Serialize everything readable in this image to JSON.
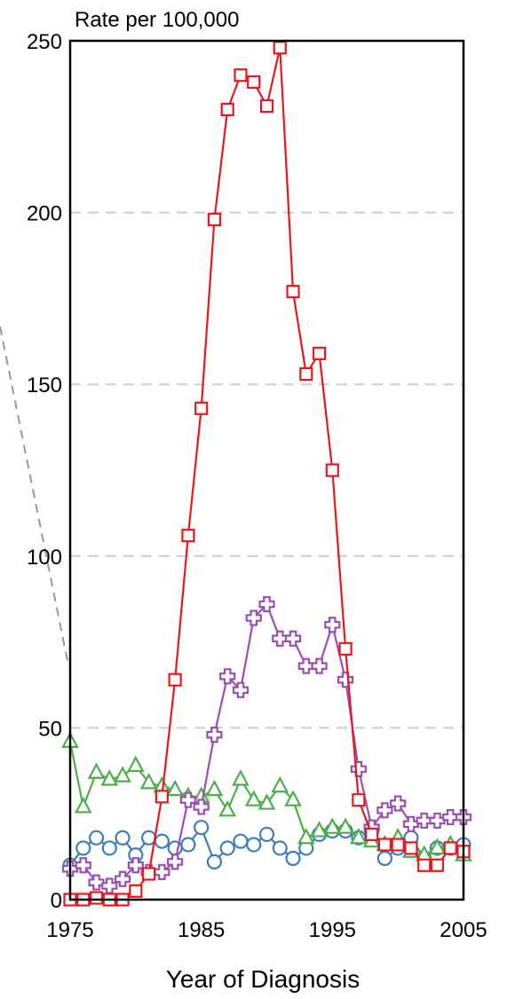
{
  "chart_data": {
    "type": "line",
    "ylabel": "Rate per 100,000",
    "xlabel": "Year of Diagnosis",
    "xlim": [
      1975,
      2005
    ],
    "ylim": [
      0,
      250
    ],
    "xticks": [
      "1975",
      "1985",
      "1995",
      "2005"
    ],
    "yticks": [
      "0",
      "50",
      "100",
      "150",
      "200",
      "250"
    ],
    "grid": "horizontal dashed",
    "x": [
      1975,
      1976,
      1977,
      1978,
      1979,
      1980,
      1981,
      1982,
      1983,
      1984,
      1985,
      1986,
      1987,
      1988,
      1989,
      1990,
      1991,
      1992,
      1993,
      1994,
      1995,
      1996,
      1997,
      1998,
      1999,
      2000,
      2001,
      2002,
      2003,
      2004,
      2005
    ],
    "series": [
      {
        "color": "#e8191e",
        "marker": "square",
        "values": [
          0,
          0,
          0.5,
          0,
          0,
          2.5,
          7.5,
          30,
          64,
          106,
          143,
          198,
          230,
          240,
          238,
          231,
          248,
          177,
          153,
          159,
          125,
          73,
          29,
          19,
          16,
          16,
          15,
          10,
          10,
          15,
          14
        ]
      },
      {
        "color": "#9b4fb4",
        "marker": "cross",
        "values": [
          9,
          10,
          5,
          4,
          6,
          10,
          8,
          8,
          11,
          29,
          27,
          48,
          65,
          61,
          82,
          86,
          76,
          76,
          68,
          68,
          80,
          64,
          38,
          21,
          26,
          28,
          22,
          23,
          23,
          24,
          24
        ]
      },
      {
        "color": "#4daf4a",
        "marker": "triangle",
        "values": [
          46,
          27,
          37,
          35,
          36,
          39,
          34,
          33,
          32,
          30,
          30,
          32,
          26,
          35,
          29,
          28,
          33,
          29,
          18,
          20,
          21,
          21,
          18,
          17,
          16,
          18,
          14,
          13,
          15,
          16,
          13
        ]
      },
      {
        "color": "#3c7ebc",
        "marker": "circle",
        "values": [
          10,
          15,
          18,
          15,
          18,
          13,
          18,
          17,
          15,
          16,
          21,
          11,
          15,
          17,
          16,
          19,
          15,
          12,
          15,
          19,
          20,
          20,
          18,
          20,
          12,
          15,
          18,
          12,
          15,
          15,
          16
        ]
      }
    ]
  }
}
